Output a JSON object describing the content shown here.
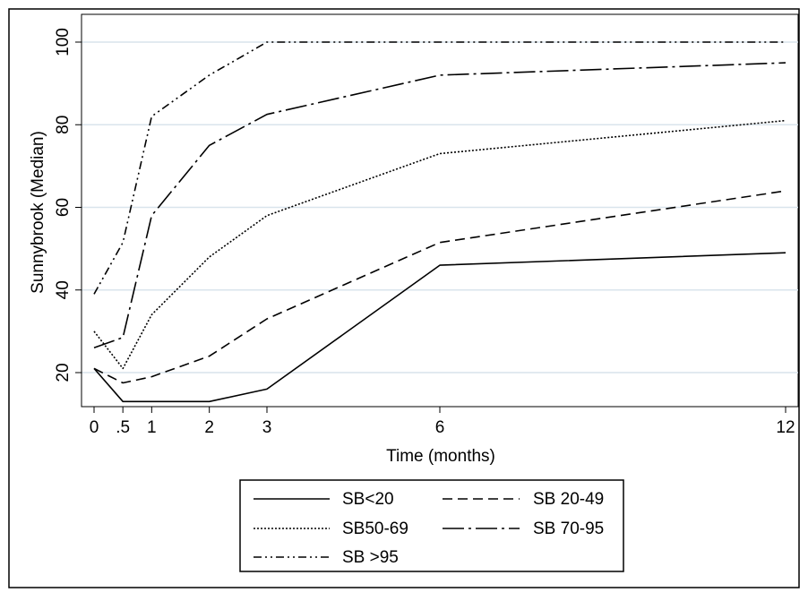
{
  "chart_data": {
    "type": "line",
    "xlabel": "Time (months)",
    "ylabel": "Sunnybrook (Median)",
    "x": [
      0,
      0.5,
      1,
      2,
      3,
      6,
      12
    ],
    "x_tick_labels": [
      "0",
      ".5",
      "1",
      "2",
      "3",
      "6",
      "12"
    ],
    "y_ticks": [
      20,
      40,
      60,
      80,
      100
    ],
    "y_tick_labels": [
      "20",
      "40",
      "60",
      "80",
      "100"
    ],
    "xlim": [
      -0.2,
      12.2
    ],
    "ylim": [
      11,
      101
    ],
    "grid": true,
    "legend_position": "bottom",
    "series": [
      {
        "name": "SB<20",
        "dash": "solid",
        "values": [
          21,
          13,
          13,
          13,
          16,
          46,
          49
        ]
      },
      {
        "name": "SB 20-49",
        "dash": "dashed",
        "values": [
          21,
          17.5,
          19,
          24,
          33,
          51.5,
          64
        ]
      },
      {
        "name": "SB50-69",
        "dash": "dotted",
        "values": [
          30,
          21,
          34,
          48,
          58,
          73,
          81
        ]
      },
      {
        "name": "SB 70-95",
        "dash": "longdash-dot",
        "values": [
          26,
          28.5,
          58,
          75,
          82.5,
          92,
          95
        ]
      },
      {
        "name": "SB >95",
        "dash": "dash-dot-dot",
        "values": [
          39,
          51.5,
          82,
          92,
          100,
          100,
          100
        ]
      }
    ],
    "colors": {
      "frame": "#000000",
      "grid": "#d9e4ec",
      "background": "#ffffff"
    }
  }
}
